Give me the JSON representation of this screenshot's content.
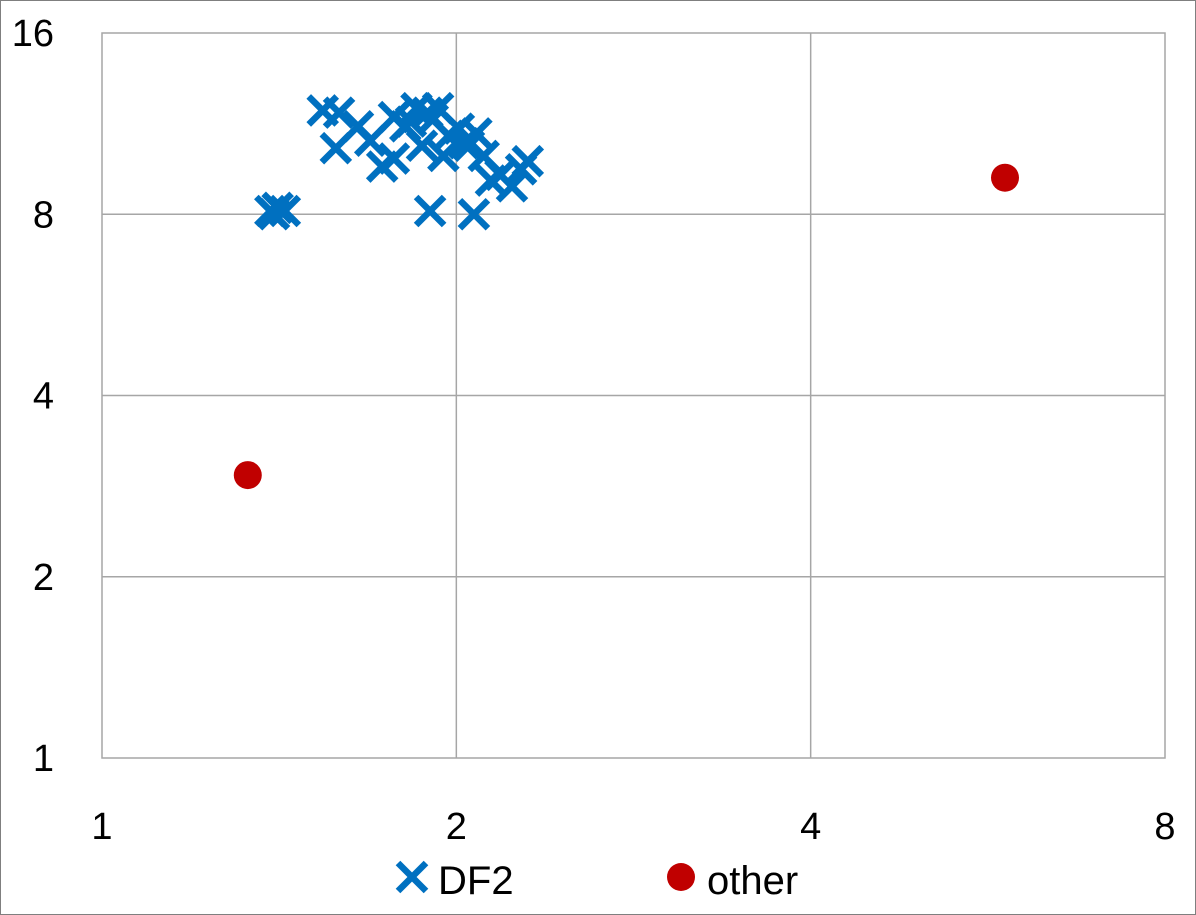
{
  "chart_data": {
    "type": "scatter",
    "x_scale": "log2",
    "y_scale": "log2",
    "xlim": [
      1,
      8
    ],
    "ylim": [
      1,
      16
    ],
    "x_ticks": [
      1,
      2,
      4,
      8
    ],
    "y_ticks": [
      1,
      2,
      4,
      8,
      16
    ],
    "x_tick_labels": [
      "1",
      "2",
      "4",
      "8"
    ],
    "y_tick_labels": [
      "1",
      "2",
      "4",
      "8",
      "16"
    ],
    "grid": true,
    "legend_position": "bottom",
    "series": [
      {
        "name": "DF2",
        "marker": "x",
        "color": "#0070c0",
        "points": [
          [
            1.39,
            8.1
          ],
          [
            1.41,
            8.2
          ],
          [
            1.43,
            8.1
          ],
          [
            1.4,
            8.0
          ],
          [
            1.54,
            11.9
          ],
          [
            1.59,
            11.8
          ],
          [
            1.58,
            10.3
          ],
          [
            1.65,
            11.2
          ],
          [
            1.69,
            10.6
          ],
          [
            1.73,
            9.6
          ],
          [
            1.77,
            9.9
          ],
          [
            1.77,
            11.6
          ],
          [
            1.81,
            11.2
          ],
          [
            1.83,
            11.4
          ],
          [
            1.85,
            12.0
          ],
          [
            1.89,
            11.8
          ],
          [
            1.91,
            11.5
          ],
          [
            1.93,
            12.0
          ],
          [
            1.87,
            10.4
          ],
          [
            1.95,
            10.0
          ],
          [
            1.97,
            10.8
          ],
          [
            2.01,
            11.1
          ],
          [
            2.03,
            10.5
          ],
          [
            2.05,
            10.4
          ],
          [
            2.08,
            10.9
          ],
          [
            2.11,
            10.0
          ],
          [
            2.14,
            9.1
          ],
          [
            2.18,
            9.3
          ],
          [
            2.23,
            8.9
          ],
          [
            2.27,
            9.5
          ],
          [
            2.3,
            9.8
          ],
          [
            1.9,
            8.1
          ],
          [
            2.07,
            8.0
          ]
        ]
      },
      {
        "name": "other",
        "marker": "circle",
        "color": "#c00000",
        "points": [
          [
            1.33,
            2.95
          ],
          [
            5.85,
            9.2
          ]
        ]
      }
    ]
  }
}
